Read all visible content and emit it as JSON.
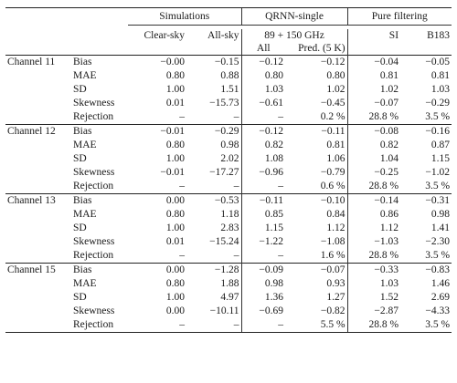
{
  "groups": {
    "simulations": "Simulations",
    "qrnn": "QRNN-single",
    "pure": "Pure filtering"
  },
  "subheaders": {
    "clear_sky": "Clear-sky",
    "all_sky": "All-sky",
    "freq": "89 + 150 GHz",
    "all": "All",
    "pred": "Pred. (5 K)",
    "si": "SI",
    "b183": "B183"
  },
  "channels": [
    {
      "name": "Channel 11",
      "rows": [
        {
          "metric": "Bias",
          "v": [
            "−0.00",
            "−0.15",
            "−0.12",
            "−0.12",
            "−0.04",
            "−0.05"
          ]
        },
        {
          "metric": "MAE",
          "v": [
            "0.80",
            "0.88",
            "0.80",
            "0.80",
            "0.81",
            "0.81"
          ]
        },
        {
          "metric": "SD",
          "v": [
            "1.00",
            "1.51",
            "1.03",
            "1.02",
            "1.02",
            "1.03"
          ]
        },
        {
          "metric": "Skewness",
          "v": [
            "0.01",
            "−15.73",
            "−0.61",
            "−0.45",
            "−0.07",
            "−0.29"
          ]
        },
        {
          "metric": "Rejection",
          "v": [
            "–",
            "–",
            "–",
            "0.2 %",
            "28.8 %",
            "3.5 %"
          ]
        }
      ]
    },
    {
      "name": "Channel 12",
      "rows": [
        {
          "metric": "Bias",
          "v": [
            "−0.01",
            "−0.29",
            "−0.12",
            "−0.11",
            "−0.08",
            "−0.16"
          ]
        },
        {
          "metric": "MAE",
          "v": [
            "0.80",
            "0.98",
            "0.82",
            "0.81",
            "0.82",
            "0.87"
          ]
        },
        {
          "metric": "SD",
          "v": [
            "1.00",
            "2.02",
            "1.08",
            "1.06",
            "1.04",
            "1.15"
          ]
        },
        {
          "metric": "Skewness",
          "v": [
            "−0.01",
            "−17.27",
            "−0.96",
            "−0.79",
            "−0.25",
            "−1.02"
          ]
        },
        {
          "metric": "Rejection",
          "v": [
            "–",
            "–",
            "–",
            "0.6 %",
            "28.8 %",
            "3.5 %"
          ]
        }
      ]
    },
    {
      "name": "Channel 13",
      "rows": [
        {
          "metric": "Bias",
          "v": [
            "0.00",
            "−0.53",
            "−0.11",
            "−0.10",
            "−0.14",
            "−0.31"
          ]
        },
        {
          "metric": "MAE",
          "v": [
            "0.80",
            "1.18",
            "0.85",
            "0.84",
            "0.86",
            "0.98"
          ]
        },
        {
          "metric": "SD",
          "v": [
            "1.00",
            "2.83",
            "1.15",
            "1.12",
            "1.12",
            "1.41"
          ]
        },
        {
          "metric": "Skewness",
          "v": [
            "0.01",
            "−15.24",
            "−1.22",
            "−1.08",
            "−1.03",
            "−2.30"
          ]
        },
        {
          "metric": "Rejection",
          "v": [
            "–",
            "–",
            "–",
            "1.6 %",
            "28.8 %",
            "3.5 %"
          ]
        }
      ]
    },
    {
      "name": "Channel 15",
      "rows": [
        {
          "metric": "Bias",
          "v": [
            "0.00",
            "−1.28",
            "−0.09",
            "−0.07",
            "−0.33",
            "−0.83"
          ]
        },
        {
          "metric": "MAE",
          "v": [
            "0.80",
            "1.88",
            "0.98",
            "0.93",
            "1.03",
            "1.46"
          ]
        },
        {
          "metric": "SD",
          "v": [
            "1.00",
            "4.97",
            "1.36",
            "1.27",
            "1.52",
            "2.69"
          ]
        },
        {
          "metric": "Skewness",
          "v": [
            "0.00",
            "−10.11",
            "−0.69",
            "−0.82",
            "−2.87",
            "−4.33"
          ]
        },
        {
          "metric": "Rejection",
          "v": [
            "–",
            "–",
            "–",
            "5.5 %",
            "28.8 %",
            "3.5 %"
          ]
        }
      ]
    }
  ]
}
